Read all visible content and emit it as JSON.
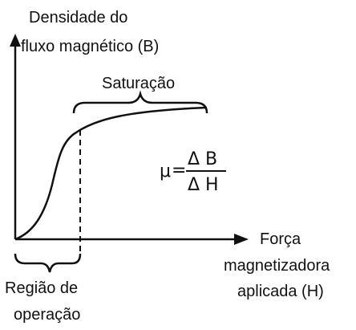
{
  "diagram": {
    "y_axis_label": [
      "Densidade do",
      "fluxo magnético (B)"
    ],
    "x_axis_label": [
      "Força",
      "magnetizadora",
      "aplicada (H)"
    ],
    "saturation_label": "Saturação",
    "operation_region_label": [
      "Região de",
      "operação"
    ],
    "formula": {
      "lhs": "μ",
      "equals": "=",
      "numerator": "Δ B",
      "denominator": "Δ H"
    },
    "colors": {
      "ink": "#111111",
      "background": "#ffffff"
    }
  }
}
